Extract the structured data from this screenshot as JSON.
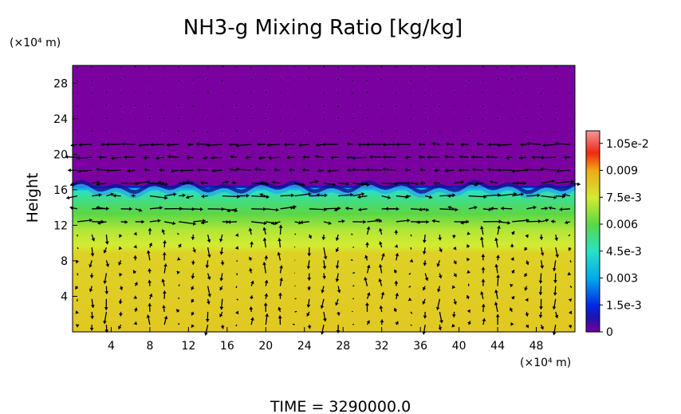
{
  "chart_data": {
    "type": "heatmap",
    "title": "NH3-g Mixing Ratio [kg/kg]",
    "ylabel": "Height",
    "y_unit": "(×10⁴ m)",
    "x_unit": "(×10⁴ m)",
    "footer": "TIME = 3290000.0",
    "x_ticks": [
      "4",
      "8",
      "12",
      "16",
      "20",
      "24",
      "28",
      "32",
      "36",
      "40",
      "44",
      "48"
    ],
    "y_ticks": [
      "4",
      "8",
      "12",
      "16",
      "20",
      "24",
      "28"
    ],
    "xlim": [
      0,
      52
    ],
    "ylim": [
      0,
      30
    ],
    "colorbar": {
      "range": [
        0,
        0.0112
      ],
      "labels": [
        "1.05e-2",
        "0.009",
        "7.5e-3",
        "0.006",
        "4.5e-3",
        "0.003",
        "1.5e-3",
        "0"
      ],
      "label_values": [
        0.0105,
        0.009,
        0.0075,
        0.006,
        0.0045,
        0.003,
        0.0015,
        0
      ]
    },
    "profile": [
      {
        "height": 0,
        "value": 0.0083
      },
      {
        "height": 9,
        "value": 0.0081
      },
      {
        "height": 9.5,
        "value": 0.0076
      },
      {
        "height": 11.5,
        "value": 0.0071
      },
      {
        "height": 13,
        "value": 0.0062
      },
      {
        "height": 15,
        "value": 0.0052
      },
      {
        "height": 16,
        "value": 0.0045
      },
      {
        "height": 16.5,
        "value": 0
      },
      {
        "height": 30,
        "value": 0
      }
    ],
    "interface_height": 16.3,
    "wind_vectors": "present"
  }
}
